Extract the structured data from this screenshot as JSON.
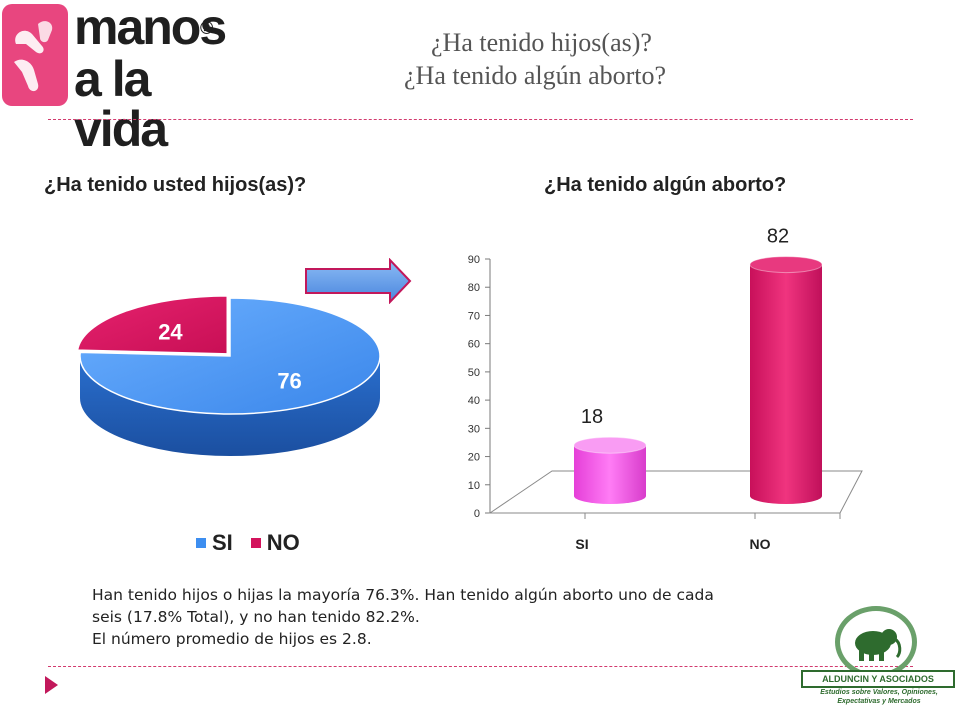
{
  "logo": {
    "line1": "manos",
    "line2": "a la vida",
    "reg": "®"
  },
  "slide": {
    "title_line1": "¿Ha tenido hijos(as)?",
    "title_line2": "¿Ha tenido algún aborto?"
  },
  "summary": {
    "line1": "Han tenido hijos o hijas la mayoría 76.3%. Han tenido algún aborto uno de cada",
    "line2": "seis (17.8% Total), y no han tenido 82.2%.",
    "line3": "El número promedio de hijos es 2.8."
  },
  "brand2": {
    "name": "ALDUNCIN Y ASOCIADOS",
    "tagline": "Estudios sobre Valores, Opiniones, Expectativas y Mercados"
  },
  "colors": {
    "si_blue": "#3d8ef0",
    "no_pink": "#d3135c",
    "si_magenta": "#f05ae6",
    "no_crimson": "#dc1c6a",
    "accent": "#c2185b"
  },
  "chart_data": [
    {
      "type": "pie",
      "title": "¿Ha tenido usted hijos(as)?",
      "categories": [
        "SI",
        "NO"
      ],
      "values": [
        76,
        24
      ],
      "colors": [
        "#3d8ef0",
        "#d3135c"
      ],
      "legend": "bottom",
      "style": "3d"
    },
    {
      "type": "bar",
      "title": "¿Ha tenido algún aborto?",
      "categories": [
        "SI",
        "NO"
      ],
      "values": [
        18,
        82
      ],
      "colors": [
        "#f05ae6",
        "#dc1c6a"
      ],
      "ylim": [
        0,
        90
      ],
      "yticks": [
        0,
        10,
        20,
        30,
        40,
        50,
        60,
        70,
        80,
        90
      ],
      "grid": false,
      "style": "3d-cylinder"
    }
  ]
}
